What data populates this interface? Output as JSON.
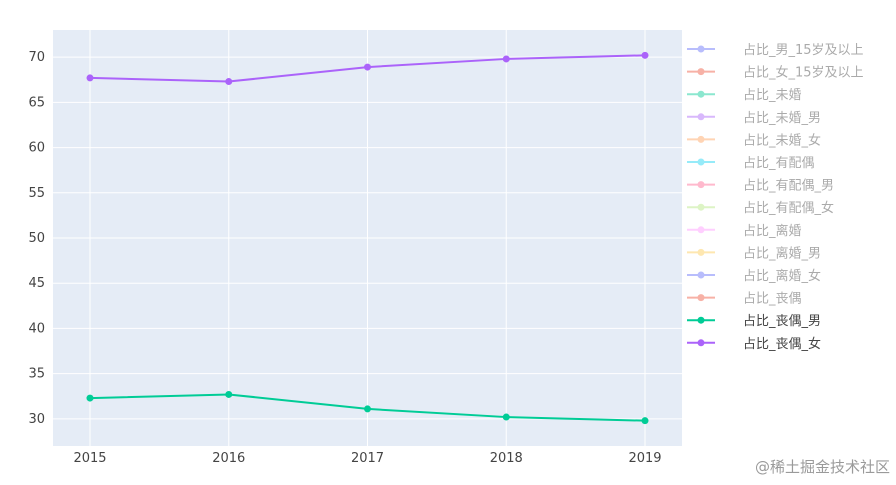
{
  "watermark": "@稀土掘金技术社区",
  "chart_data": {
    "type": "line",
    "x": [
      "2015",
      "2016",
      "2017",
      "2018",
      "2019"
    ],
    "ylim": [
      27,
      73
    ],
    "yticks": [
      30,
      35,
      40,
      45,
      50,
      55,
      60,
      65,
      70
    ],
    "grid": true,
    "legend_position": "right",
    "series": [
      {
        "name": "占比_男_15岁及以上",
        "color": "#636efa",
        "visible": false,
        "values": null
      },
      {
        "name": "占比_女_15岁及以上",
        "color": "#ef553b",
        "visible": false,
        "values": null
      },
      {
        "name": "占比_未婚",
        "color": "#00cc96",
        "visible": false,
        "values": null
      },
      {
        "name": "占比_未婚_男",
        "color": "#ab63fa",
        "visible": false,
        "values": null
      },
      {
        "name": "占比_未婚_女",
        "color": "#ffa15a",
        "visible": false,
        "values": null
      },
      {
        "name": "占比_有配偶",
        "color": "#19d3f3",
        "visible": false,
        "values": null
      },
      {
        "name": "占比_有配偶_男",
        "color": "#ff6692",
        "visible": false,
        "values": null
      },
      {
        "name": "占比_有配偶_女",
        "color": "#b6e880",
        "visible": false,
        "values": null
      },
      {
        "name": "占比_离婚",
        "color": "#ff97ff",
        "visible": false,
        "values": null
      },
      {
        "name": "占比_离婚_男",
        "color": "#fecb52",
        "visible": false,
        "values": null
      },
      {
        "name": "占比_离婚_女",
        "color": "#636efa",
        "visible": false,
        "values": null
      },
      {
        "name": "占比_丧偶",
        "color": "#ef553b",
        "visible": false,
        "values": null
      },
      {
        "name": "占比_丧偶_男",
        "color": "#00cc96",
        "visible": true,
        "values": [
          32.3,
          32.7,
          31.1,
          30.2,
          29.8
        ]
      },
      {
        "name": "占比_丧偶_女",
        "color": "#ab63fa",
        "visible": true,
        "values": [
          67.7,
          67.3,
          68.9,
          69.8,
          70.2
        ]
      }
    ]
  }
}
